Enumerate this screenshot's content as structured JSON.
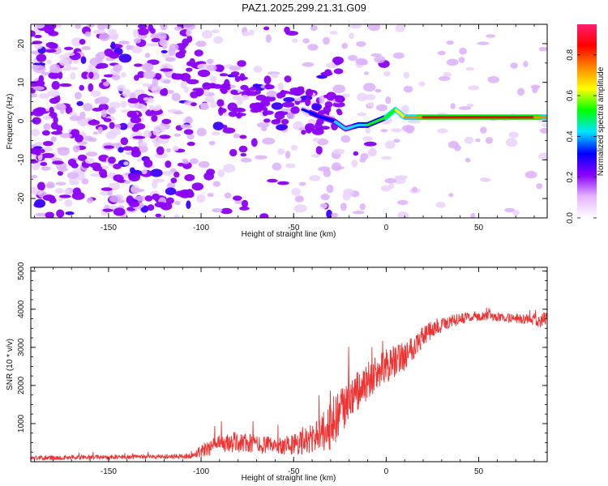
{
  "title": "PAZ1.2025.299.21.31.G09",
  "chart_data": [
    {
      "type": "heatmap",
      "xlabel": "Height of straight line (km)",
      "ylabel": "Frequency (Hz)",
      "xlim": [
        -192,
        87
      ],
      "ylim": [
        -25,
        25
      ],
      "xticks": [
        -150,
        -100,
        -50,
        0,
        50
      ],
      "yticks": [
        -20,
        -10,
        0,
        10,
        20
      ],
      "colorbar": {
        "label": "Normalized spectral amplitude",
        "range": [
          0,
          0.95
        ],
        "ticks": [
          0.0,
          0.2,
          0.4,
          0.6,
          0.8
        ],
        "colors": [
          "#ffffff",
          "#e6b3ff",
          "#8800ff",
          "#0000ff",
          "#00e5ff",
          "#00ff00",
          "#ffff00",
          "#ff8800",
          "#ff0000",
          "#ff1e6e"
        ]
      },
      "ridge": {
        "x": [
          -45,
          -35,
          -28,
          -22,
          -15,
          -10,
          -5,
          0,
          5,
          10,
          20,
          30,
          40,
          50,
          60,
          70,
          80,
          87
        ],
        "freq": [
          3,
          1,
          0,
          -2,
          -1,
          -1,
          0,
          1,
          3,
          1,
          1,
          1,
          1,
          1,
          1,
          1,
          1,
          1
        ],
        "amplitude": [
          0.2,
          0.25,
          0.3,
          0.3,
          0.4,
          0.45,
          0.5,
          0.55,
          0.6,
          0.75,
          0.85,
          0.85,
          0.85,
          0.85,
          0.85,
          0.85,
          0.85,
          0.8
        ]
      }
    },
    {
      "type": "line",
      "xlabel": "Height of straight line (km)",
      "ylabel": "SNR (10 * v/v)",
      "xlim": [
        -192,
        87
      ],
      "ylim": [
        0,
        5100
      ],
      "xticks": [
        -150,
        -100,
        -50,
        0,
        50
      ],
      "yticks": [
        1000,
        2000,
        3000,
        4000,
        5000
      ],
      "color": "#ee3333",
      "series": [
        {
          "name": "SNR",
          "x": [
            -192,
            -150,
            -120,
            -105,
            -100,
            -90,
            -80,
            -70,
            -60,
            -50,
            -40,
            -30,
            -25,
            -20,
            -10,
            0,
            10,
            20,
            30,
            40,
            50,
            60,
            70,
            80,
            87
          ],
          "mean": [
            100,
            120,
            130,
            150,
            300,
            450,
            520,
            450,
            420,
            450,
            600,
            900,
            1200,
            1600,
            2100,
            2500,
            2800,
            3300,
            3600,
            3750,
            3820,
            3800,
            3760,
            3720,
            3700
          ],
          "noise": [
            60,
            60,
            60,
            70,
            180,
            250,
            280,
            250,
            220,
            300,
            400,
            600,
            700,
            600,
            500,
            450,
            400,
            300,
            200,
            150,
            120,
            120,
            130,
            150,
            250
          ]
        }
      ]
    }
  ]
}
